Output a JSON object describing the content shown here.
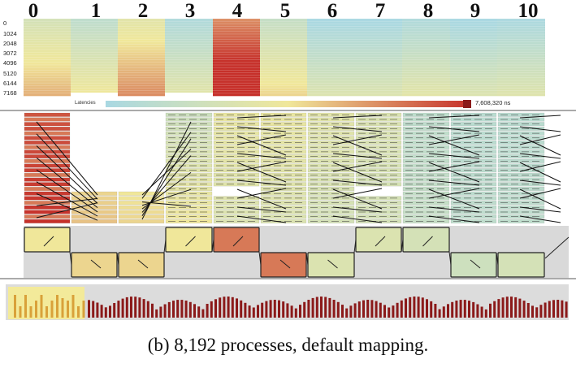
{
  "columns": [
    "0",
    "1",
    "2",
    "3",
    "4",
    "5",
    "6",
    "7",
    "8",
    "9",
    "10"
  ],
  "rank_ticks": [
    "0",
    "1024",
    "2048",
    "3072",
    "4096",
    "5120",
    "6144",
    "7168"
  ],
  "legend": {
    "title": "Latencies",
    "max_label": "7,608,320 ns"
  },
  "caption": "(b) 8,192 processes, default mapping.",
  "colors": {
    "low": "#a9d8e2",
    "mid": "#f0e79a",
    "high": "#c6302a",
    "accent": "#8b1a1a"
  },
  "matrix_intensity": [
    0.3,
    0.15,
    0.4,
    0.05,
    0.75,
    0.2,
    0.0,
    0.0,
    0.05,
    0.0,
    0.02
  ],
  "timeline": {
    "row_pattern": [
      "top",
      "bottom",
      "bottom",
      "top",
      "top",
      "bottom",
      "bottom",
      "top",
      "top",
      "bottom",
      "bottom"
    ],
    "intensity": [
      0.5,
      0.55,
      0.55,
      0.5,
      0.8,
      0.8,
      0.35,
      0.35,
      0.3,
      0.25,
      0.3
    ]
  }
}
